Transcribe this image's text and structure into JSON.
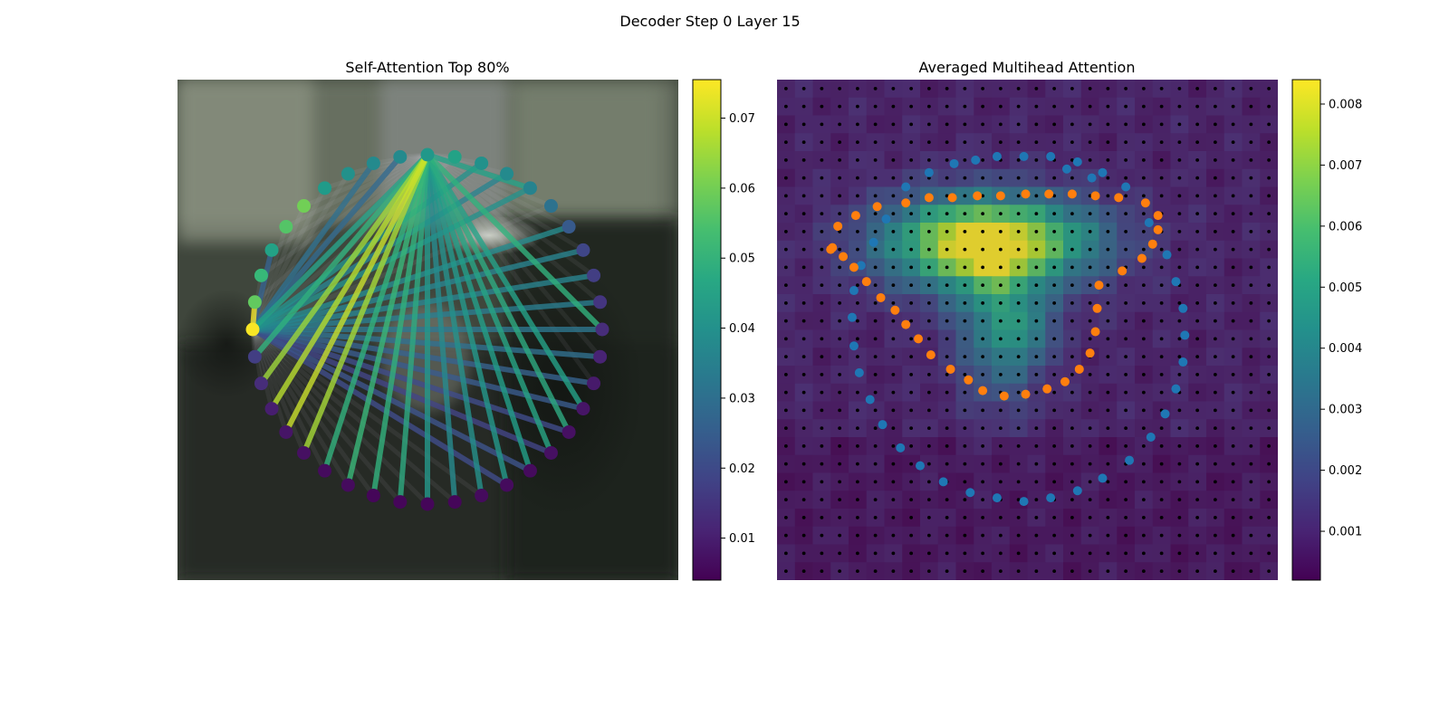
{
  "figure": {
    "title": "Decoder Step 0 Layer 15"
  },
  "chart_data": [
    {
      "type": "network",
      "title": "Self-Attention Top 80%",
      "colormap": "viridis",
      "colorbar": {
        "range": [
          0.004,
          0.0755
        ],
        "ticks": [
          0.01,
          0.02,
          0.03,
          0.04,
          0.05,
          0.06,
          0.07
        ],
        "tick_labels": [
          "0.01",
          "0.02",
          "0.03",
          "0.04",
          "0.05",
          "0.06",
          "0.07"
        ]
      },
      "node_count": 40,
      "node_values": [
        0.042,
        0.045,
        0.04,
        0.038,
        0.036,
        0.031,
        0.024,
        0.019,
        0.017,
        0.015,
        0.013,
        0.011,
        0.009,
        0.008,
        0.007,
        0.007,
        0.006,
        0.006,
        0.006,
        0.005,
        0.005,
        0.005,
        0.005,
        0.006,
        0.006,
        0.007,
        0.008,
        0.01,
        0.013,
        0.017,
        0.075,
        0.058,
        0.052,
        0.045,
        0.056,
        0.06,
        0.043,
        0.04,
        0.038,
        0.038
      ],
      "edges": [
        {
          "from": 0,
          "to": 4,
          "value": 0.045
        },
        {
          "from": 0,
          "to": 10,
          "value": 0.05
        },
        {
          "from": 0,
          "to": 13,
          "value": 0.045
        },
        {
          "from": 0,
          "to": 14,
          "value": 0.048
        },
        {
          "from": 0,
          "to": 15,
          "value": 0.046
        },
        {
          "from": 0,
          "to": 16,
          "value": 0.044
        },
        {
          "from": 0,
          "to": 17,
          "value": 0.042
        },
        {
          "from": 0,
          "to": 18,
          "value": 0.04
        },
        {
          "from": 0,
          "to": 19,
          "value": 0.038
        },
        {
          "from": 0,
          "to": 20,
          "value": 0.042
        },
        {
          "from": 0,
          "to": 21,
          "value": 0.048
        },
        {
          "from": 0,
          "to": 22,
          "value": 0.05
        },
        {
          "from": 0,
          "to": 23,
          "value": 0.052
        },
        {
          "from": 0,
          "to": 24,
          "value": 0.05
        },
        {
          "from": 0,
          "to": 25,
          "value": 0.066
        },
        {
          "from": 0,
          "to": 26,
          "value": 0.07
        },
        {
          "from": 0,
          "to": 27,
          "value": 0.068
        },
        {
          "from": 0,
          "to": 28,
          "value": 0.065
        },
        {
          "from": 0,
          "to": 29,
          "value": 0.05
        },
        {
          "from": 0,
          "to": 30,
          "value": 0.045
        },
        {
          "from": 30,
          "to": 2,
          "value": 0.04
        },
        {
          "from": 30,
          "to": 3,
          "value": 0.036
        },
        {
          "from": 30,
          "to": 4,
          "value": 0.04
        },
        {
          "from": 30,
          "to": 6,
          "value": 0.038
        },
        {
          "from": 30,
          "to": 7,
          "value": 0.036
        },
        {
          "from": 30,
          "to": 8,
          "value": 0.036
        },
        {
          "from": 30,
          "to": 9,
          "value": 0.034
        },
        {
          "from": 30,
          "to": 10,
          "value": 0.032
        },
        {
          "from": 30,
          "to": 11,
          "value": 0.03
        },
        {
          "from": 30,
          "to": 12,
          "value": 0.026
        },
        {
          "from": 30,
          "to": 13,
          "value": 0.024
        },
        {
          "from": 30,
          "to": 14,
          "value": 0.02
        },
        {
          "from": 30,
          "to": 15,
          "value": 0.018
        },
        {
          "from": 30,
          "to": 16,
          "value": 0.022
        },
        {
          "from": 30,
          "to": 17,
          "value": 0.02
        },
        {
          "from": 30,
          "to": 31,
          "value": 0.075
        },
        {
          "from": 30,
          "to": 33,
          "value": 0.026
        },
        {
          "from": 30,
          "to": 38,
          "value": 0.03
        },
        {
          "from": 30,
          "to": 39,
          "value": 0.028
        }
      ]
    },
    {
      "type": "heatmap",
      "title": "Averaged Multihead Attention",
      "colormap": "viridis",
      "grid_size": 28,
      "colorbar": {
        "range": [
          0.0002,
          0.0084
        ],
        "ticks": [
          0.001,
          0.002,
          0.003,
          0.004,
          0.005,
          0.006,
          0.007,
          0.008
        ],
        "tick_labels": [
          "0.001",
          "0.002",
          "0.003",
          "0.004",
          "0.005",
          "0.006",
          "0.007",
          "0.008"
        ]
      },
      "hotspots": [
        {
          "cx": 11.6,
          "cy": 9.2,
          "sx": 4.2,
          "sy": 1.8,
          "v": 0.0042
        },
        {
          "cx": 9.5,
          "cy": 9.0,
          "sx": 2.8,
          "sy": 1.9,
          "v": 0.0022
        },
        {
          "cx": 14.5,
          "cy": 8.8,
          "sx": 3.2,
          "sy": 1.6,
          "v": 0.0022
        },
        {
          "cx": 12.5,
          "cy": 14.0,
          "sx": 1.6,
          "sy": 2.8,
          "v": 0.0032
        },
        {
          "cx": 11.3,
          "cy": 9.2,
          "sx": 1.0,
          "sy": 0.9,
          "v": 0.0022
        },
        {
          "cx": 14.3,
          "cy": 14.2,
          "sx": 0.8,
          "sy": 1.0,
          "v": 0.0015
        },
        {
          "cx": 13.0,
          "cy": 11.0,
          "sx": 3.0,
          "sy": 3.0,
          "v": 0.0006
        }
      ],
      "blue_points": [
        [
          12.3,
          4.3
        ],
        [
          13.8,
          4.3
        ],
        [
          15.3,
          4.3
        ],
        [
          16.8,
          4.6
        ],
        [
          18.2,
          5.2
        ],
        [
          19.5,
          6.0
        ],
        [
          20.8,
          8.0
        ],
        [
          21.8,
          9.8
        ],
        [
          22.3,
          11.3
        ],
        [
          22.7,
          12.8
        ],
        [
          22.8,
          14.3
        ],
        [
          22.7,
          15.8
        ],
        [
          22.3,
          17.3
        ],
        [
          21.7,
          18.7
        ],
        [
          20.9,
          20.0
        ],
        [
          19.7,
          21.3
        ],
        [
          18.2,
          22.3
        ],
        [
          16.8,
          23.0
        ],
        [
          15.3,
          23.4
        ],
        [
          13.8,
          23.6
        ],
        [
          12.3,
          23.4
        ],
        [
          10.8,
          23.1
        ],
        [
          9.3,
          22.5
        ],
        [
          8.0,
          21.6
        ],
        [
          6.9,
          20.6
        ],
        [
          5.9,
          19.3
        ],
        [
          5.2,
          17.9
        ],
        [
          4.6,
          16.4
        ],
        [
          4.3,
          14.9
        ],
        [
          4.2,
          13.3
        ],
        [
          4.3,
          11.8
        ],
        [
          4.7,
          10.4
        ],
        [
          5.4,
          9.1
        ],
        [
          6.1,
          7.8
        ],
        [
          7.2,
          6.0
        ],
        [
          8.5,
          5.2
        ],
        [
          9.9,
          4.7
        ],
        [
          11.1,
          4.5
        ],
        [
          16.2,
          5.0
        ],
        [
          17.6,
          5.5
        ]
      ],
      "orange_points": [
        [
          3.1,
          9.4
        ],
        [
          3.4,
          8.2
        ],
        [
          4.4,
          7.6
        ],
        [
          5.6,
          7.1
        ],
        [
          7.2,
          6.9
        ],
        [
          8.5,
          6.6
        ],
        [
          9.8,
          6.6
        ],
        [
          11.2,
          6.5
        ],
        [
          12.5,
          6.5
        ],
        [
          13.9,
          6.4
        ],
        [
          15.2,
          6.4
        ],
        [
          16.5,
          6.4
        ],
        [
          17.8,
          6.5
        ],
        [
          19.1,
          6.6
        ],
        [
          20.6,
          6.9
        ],
        [
          21.3,
          7.6
        ],
        [
          21.3,
          8.4
        ],
        [
          21.0,
          9.2
        ],
        [
          20.4,
          10.0
        ],
        [
          19.3,
          10.7
        ],
        [
          18.0,
          11.5
        ],
        [
          17.9,
          12.8
        ],
        [
          17.8,
          14.1
        ],
        [
          17.5,
          15.3
        ],
        [
          16.9,
          16.2
        ],
        [
          16.1,
          16.9
        ],
        [
          15.1,
          17.3
        ],
        [
          13.9,
          17.6
        ],
        [
          12.7,
          17.7
        ],
        [
          11.5,
          17.4
        ],
        [
          10.7,
          16.8
        ],
        [
          9.7,
          16.2
        ],
        [
          8.6,
          15.4
        ],
        [
          7.9,
          14.5
        ],
        [
          7.2,
          13.7
        ],
        [
          6.6,
          12.9
        ],
        [
          5.8,
          12.2
        ],
        [
          5.0,
          11.3
        ],
        [
          4.3,
          10.5
        ],
        [
          3.7,
          9.9
        ],
        [
          3.0,
          9.5
        ]
      ]
    }
  ]
}
